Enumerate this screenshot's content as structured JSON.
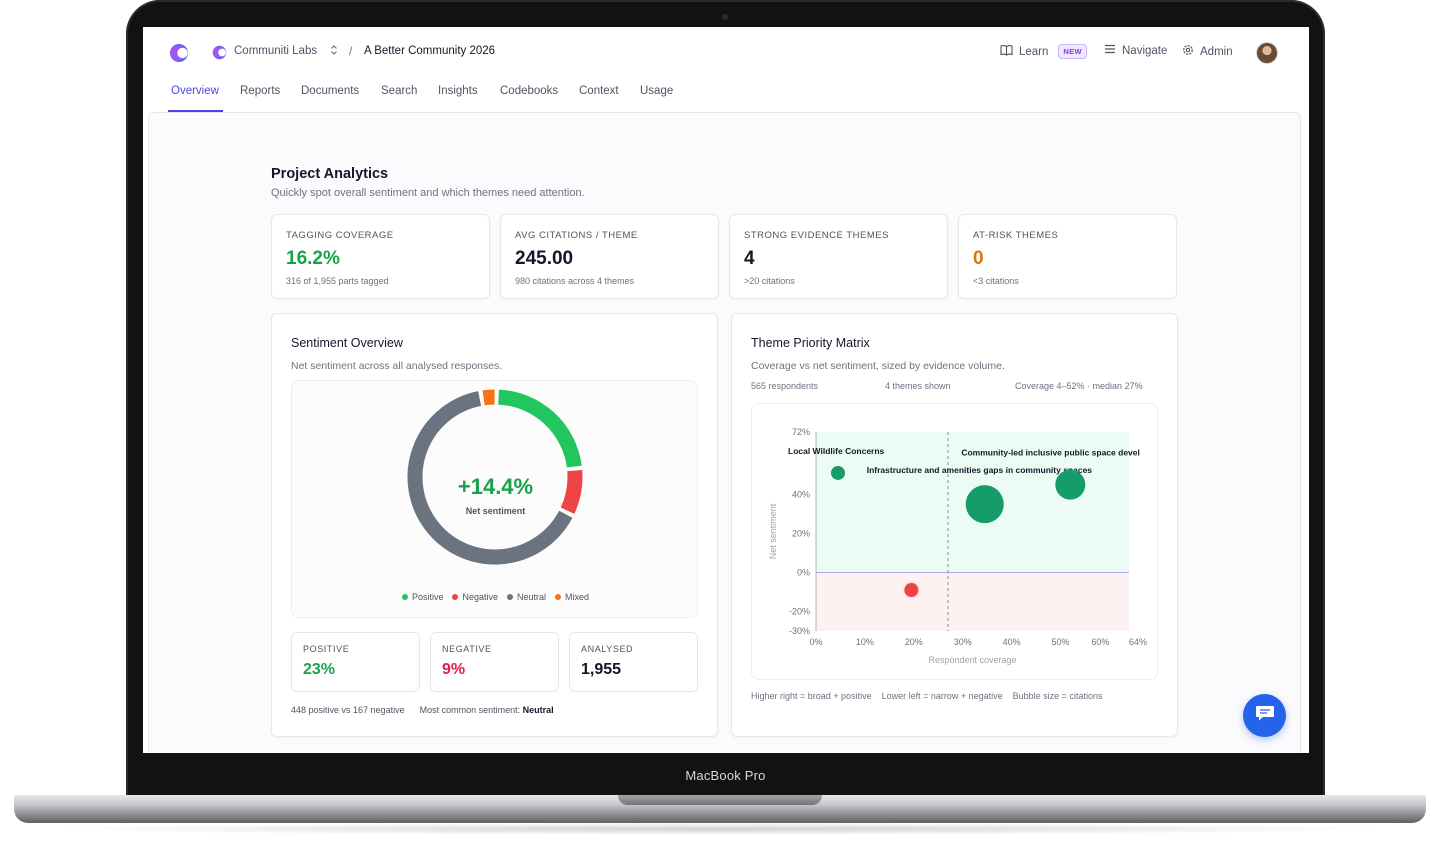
{
  "device": {
    "label": "MacBook Pro"
  },
  "header": {
    "org_name": "Communiti Labs",
    "breadcrumb_separator": "/",
    "project_name": "A Better Community 2026",
    "learn_label": "Learn",
    "new_badge": "NEW",
    "navigate_label": "Navigate",
    "admin_label": "Admin"
  },
  "tabs": [
    {
      "label": "Overview",
      "active": true
    },
    {
      "label": "Reports"
    },
    {
      "label": "Documents"
    },
    {
      "label": "Search"
    },
    {
      "label": "Insights"
    },
    {
      "label": "Codebooks"
    },
    {
      "label": "Context"
    },
    {
      "label": "Usage"
    }
  ],
  "analytics": {
    "title": "Project Analytics",
    "subtitle": "Quickly spot overall sentiment and which themes need attention."
  },
  "kpis": [
    {
      "label": "TAGGING COVERAGE",
      "value": "16.2%",
      "note": "316 of 1,955 parts tagged",
      "color": "#16a34a"
    },
    {
      "label": "AVG CITATIONS / THEME",
      "value": "245.00",
      "note": "980 citations across 4 themes",
      "color": "#111827"
    },
    {
      "label": "STRONG EVIDENCE THEMES",
      "value": "4",
      "note": ">20 citations",
      "color": "#111827"
    },
    {
      "label": "AT-RISK THEMES",
      "value": "0",
      "note": "<3 citations",
      "color": "#d97706"
    }
  ],
  "sentiment": {
    "title": "Sentiment Overview",
    "subtitle": "Net sentiment across all analysed responses.",
    "net_value": "+14.4%",
    "net_label": "Net sentiment",
    "legend": [
      {
        "label": "Positive",
        "color": "#22c55e"
      },
      {
        "label": "Negative",
        "color": "#ef4444"
      },
      {
        "label": "Neutral",
        "color": "#6b7280"
      },
      {
        "label": "Mixed",
        "color": "#f97316"
      }
    ],
    "positive": {
      "label": "POSITIVE",
      "value": "23%",
      "color": "#16a34a"
    },
    "negative": {
      "label": "NEGATIVE",
      "value": "9%",
      "color": "#e11d48"
    },
    "analysed": {
      "label": "ANALYSED",
      "value": "1,955",
      "color": "#111827"
    },
    "footer_counts": "448 positive vs 167 negative",
    "footer_common_label": "Most common sentiment:",
    "footer_common_value": "Neutral"
  },
  "matrix": {
    "title": "Theme Priority Matrix",
    "subtitle": "Coverage vs net sentiment, sized by evidence volume.",
    "respondents": "565 respondents",
    "themes_shown": "4 themes shown",
    "coverage_range": "Coverage 4–52% · median 27%",
    "legend_hints": [
      "Higher right = broad + positive",
      "Lower left = narrow + negative",
      "Bubble size = citations"
    ]
  },
  "chart_data": [
    {
      "type": "pie",
      "title": "Sentiment Overview",
      "center_label": "+14.4%",
      "categories": [
        "Positive",
        "Negative",
        "Neutral",
        "Mixed"
      ],
      "values": [
        23,
        9,
        65,
        3
      ],
      "colors": [
        "#22c55e",
        "#ef4444",
        "#6b7280",
        "#f97316"
      ]
    },
    {
      "type": "scatter",
      "title": "Theme Priority Matrix",
      "xlabel": "Respondent coverage",
      "ylabel": "Net sentiment",
      "xlim": [
        0,
        64
      ],
      "ylim": [
        -30,
        72
      ],
      "x_ticks": [
        "0%",
        "10%",
        "20%",
        "30%",
        "40%",
        "50%",
        "60%",
        "64%"
      ],
      "y_ticks": [
        "72%",
        "40%",
        "20%",
        "0%",
        "-20%",
        "-30%"
      ],
      "median_x": 27,
      "points": [
        {
          "x": 4.5,
          "y": 51,
          "size": 1,
          "color": "#169b6b",
          "label": "Local Wildlife Concerns"
        },
        {
          "x": 34.5,
          "y": 35,
          "size": 3,
          "color": "#169b6b",
          "label": "Infrastructure and amenities gaps in community spaces"
        },
        {
          "x": 52,
          "y": 45,
          "size": 2,
          "color": "#169b6b",
          "label": "Community-led inclusive public space devel"
        },
        {
          "x": 19.5,
          "y": -9,
          "size": 1,
          "color": "#ef4444",
          "label": ""
        }
      ]
    }
  ]
}
